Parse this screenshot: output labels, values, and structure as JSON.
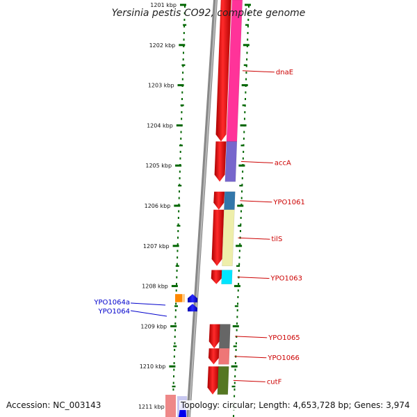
{
  "title": "Yersinia pestis CO92, complete genome",
  "scale": {
    "ticks": [
      "1201 kbp",
      "1202 kbp",
      "1203 kbp",
      "1204 kbp",
      "1205 kbp",
      "1206 kbp",
      "1207 kbp",
      "1208 kbp",
      "1209 kbp",
      "1210 kbp",
      "1211 kbp"
    ]
  },
  "genes_forward": [
    {
      "name": "dnaE",
      "start_kbp": 1200.6,
      "end_kbp": 1204.4,
      "cog_color": "#ff3399"
    },
    {
      "name": "accA",
      "start_kbp": 1204.4,
      "end_kbp": 1205.4,
      "cog_color": "#7766cc"
    },
    {
      "name": "YPO1061",
      "start_kbp": 1205.65,
      "end_kbp": 1206.1,
      "cog_color": "#3377aa"
    },
    {
      "name": "tilS",
      "start_kbp": 1206.1,
      "end_kbp": 1207.5,
      "cog_color": "#eeeeaa"
    },
    {
      "name": "YPO1063",
      "start_kbp": 1207.6,
      "end_kbp": 1207.95,
      "cog_color": "#00e5ff"
    },
    {
      "name": "YPO1065",
      "start_kbp": 1208.95,
      "end_kbp": 1209.55,
      "cog_color": "#666666"
    },
    {
      "name": "YPO1066",
      "start_kbp": 1209.55,
      "end_kbp": 1209.95,
      "cog_color": "#ee7777"
    },
    {
      "name": "cutF",
      "start_kbp": 1210.0,
      "end_kbp": 1210.7,
      "cog_color": "#557722"
    }
  ],
  "genes_reverse": [
    {
      "name": "YPO1064",
      "start_kbp": 1208.2,
      "end_kbp": 1208.4,
      "cog_color": "#ff8800"
    },
    {
      "name": "YPO1064a",
      "start_kbp": 1208.2,
      "end_kbp": 1208.6,
      "cog_color": "#0000ee"
    }
  ],
  "footer": {
    "accession": "Accession: NC_003143",
    "stats": "Topology: circular; Length: 4,653,728 bp; Genes: 3,974"
  },
  "colors": {
    "cds": "#ee0000",
    "backbone": "#888888",
    "forward_label": "#cc0000",
    "reverse_label": "#0000cc",
    "tick": "#006600"
  }
}
